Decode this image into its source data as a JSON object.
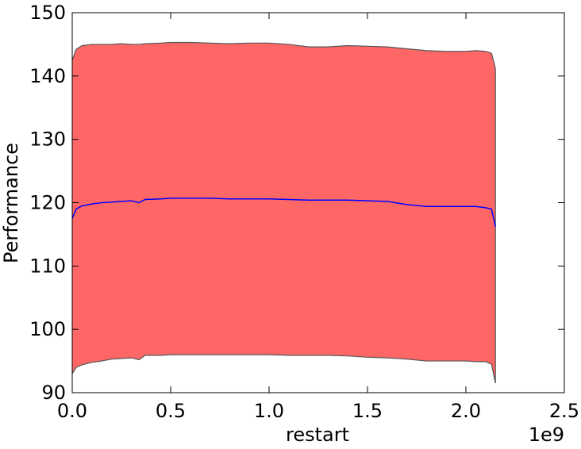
{
  "chart_data": {
    "type": "band_line",
    "xlabel": "restart",
    "ylabel": "Performance",
    "x_offset_label": "1e9",
    "x": [
      0,
      0.02,
      0.05,
      0.1,
      0.15,
      0.2,
      0.25,
      0.3,
      0.34,
      0.37,
      0.45,
      0.5,
      0.6,
      0.7,
      0.8,
      0.9,
      1.0,
      1.1,
      1.2,
      1.3,
      1.4,
      1.5,
      1.6,
      1.7,
      1.8,
      1.9,
      2.0,
      2.05,
      2.1,
      2.13,
      2.15
    ],
    "band": {
      "color": "#ff6666",
      "edge_color": "#555555",
      "upper": [
        142.5,
        144.2,
        144.8,
        145.0,
        145.0,
        145.0,
        145.1,
        145.0,
        145.0,
        145.1,
        145.2,
        145.3,
        145.3,
        145.2,
        145.1,
        145.2,
        145.2,
        145.0,
        144.6,
        144.6,
        144.8,
        144.7,
        144.6,
        144.3,
        144.0,
        143.9,
        143.9,
        144.0,
        143.9,
        143.6,
        141.2
      ],
      "lower": [
        93.0,
        94.0,
        94.4,
        94.8,
        95.0,
        95.3,
        95.4,
        95.5,
        95.2,
        95.9,
        95.9,
        96.0,
        96.0,
        96.0,
        96.0,
        96.0,
        96.0,
        95.9,
        95.9,
        95.9,
        95.8,
        95.6,
        95.5,
        95.3,
        95.0,
        95.0,
        95.0,
        94.9,
        94.9,
        94.5,
        91.5
      ]
    },
    "line": {
      "color": "#0000ff",
      "values": [
        117.5,
        119.0,
        119.5,
        119.8,
        120.0,
        120.1,
        120.2,
        120.3,
        120.0,
        120.5,
        120.6,
        120.7,
        120.7,
        120.7,
        120.6,
        120.6,
        120.6,
        120.5,
        120.4,
        120.4,
        120.4,
        120.3,
        120.2,
        119.7,
        119.4,
        119.4,
        119.4,
        119.4,
        119.2,
        119.0,
        116.2
      ]
    },
    "xlim": [
      0,
      2.5
    ],
    "xticks": [
      {
        "value": 0,
        "label": "0.0"
      },
      0.5,
      {
        "value": 1,
        "label": "1.0"
      },
      1.5,
      {
        "value": 2,
        "label": "2.0"
      },
      2.5
    ],
    "ylim": [
      90,
      150
    ],
    "yticks": [
      90,
      100,
      110,
      120,
      130,
      140,
      150
    ]
  }
}
